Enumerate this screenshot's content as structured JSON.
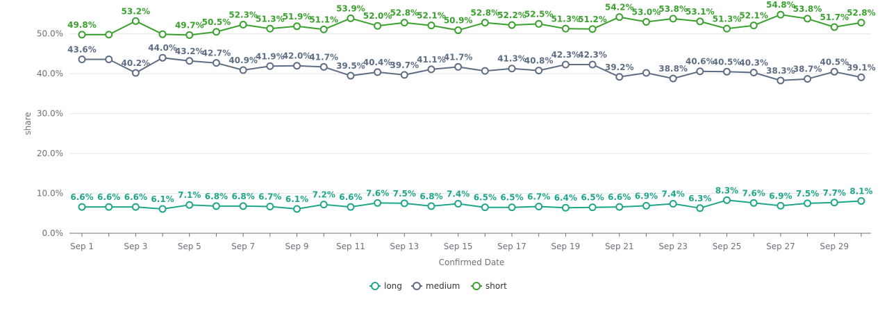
{
  "chart_data": {
    "type": "line",
    "xlabel": "Confirmed Date",
    "ylabel": "share",
    "ylim": [
      0,
      55
    ],
    "yticks": [
      "0.0%",
      "10.0%",
      "20.0%",
      "30.0%",
      "40.0%",
      "50.0%"
    ],
    "ytick_values": [
      0,
      10,
      20,
      30,
      40,
      50
    ],
    "categories": [
      "Sep 1",
      "Sep 2",
      "Sep 3",
      "Sep 4",
      "Sep 5",
      "Sep 6",
      "Sep 7",
      "Sep 8",
      "Sep 9",
      "Sep 10",
      "Sep 11",
      "Sep 12",
      "Sep 13",
      "Sep 14",
      "Sep 15",
      "Sep 16",
      "Sep 17",
      "Sep 18",
      "Sep 19",
      "Sep 20",
      "Sep 21",
      "Sep 22",
      "Sep 23",
      "Sep 24",
      "Sep 25",
      "Sep 26",
      "Sep 27",
      "Sep 28",
      "Sep 29",
      "Sep 30"
    ],
    "xtick_labels": [
      "Sep 1",
      "Sep 3",
      "Sep 5",
      "Sep 7",
      "Sep 9",
      "Sep 11",
      "Sep 13",
      "Sep 15",
      "Sep 17",
      "Sep 19",
      "Sep 21",
      "Sep 23",
      "Sep 25",
      "Sep 27",
      "Sep 29"
    ],
    "grid": true,
    "legend_position": "bottom-center",
    "series": [
      {
        "name": "long",
        "color": "#1fa68a",
        "values": [
          6.6,
          6.6,
          6.6,
          6.1,
          7.1,
          6.8,
          6.8,
          6.7,
          6.1,
          7.2,
          6.6,
          7.6,
          7.5,
          6.8,
          7.4,
          6.5,
          6.5,
          6.7,
          6.4,
          6.5,
          6.6,
          6.9,
          7.4,
          6.3,
          8.3,
          7.6,
          6.9,
          7.5,
          7.7,
          8.1
        ],
        "labels": [
          "6.6%",
          "6.6%",
          "6.6%",
          "6.1%",
          "7.1%",
          "6.8%",
          "6.8%",
          "6.7%",
          "6.1%",
          "7.2%",
          "6.6%",
          "7.6%",
          "7.5%",
          "6.8%",
          "7.4%",
          "6.5%",
          "6.5%",
          "6.7%",
          "6.4%",
          "6.5%",
          "6.6%",
          "6.9%",
          "7.4%",
          "6.3%",
          "8.3%",
          "7.6%",
          "6.9%",
          "7.5%",
          "7.7%",
          "8.1%"
        ]
      },
      {
        "name": "medium",
        "color": "#5d6d84",
        "values": [
          43.6,
          43.6,
          40.2,
          44.0,
          43.2,
          42.7,
          40.9,
          41.9,
          42.0,
          41.7,
          39.5,
          40.4,
          39.7,
          41.1,
          41.7,
          40.7,
          41.3,
          40.8,
          42.3,
          42.3,
          39.2,
          40.2,
          38.8,
          40.6,
          40.5,
          40.3,
          38.3,
          38.7,
          40.5,
          39.1
        ],
        "labels": [
          "43.6%",
          "",
          "40.2%",
          "44.0%",
          "43.2%",
          "42.7%",
          "40.9%",
          "41.9%",
          "42.0%",
          "41.7%",
          "39.5%",
          "40.4%",
          "39.7%",
          "41.1%",
          "41.7%",
          "",
          "41.3%",
          "40.8%",
          "42.3%",
          "42.3%",
          "39.2%",
          "",
          "38.8%",
          "40.6%",
          "40.5%",
          "40.3%",
          "38.3%",
          "38.7%",
          "40.5%",
          "39.1%"
        ]
      },
      {
        "name": "short",
        "color": "#3aa02e",
        "values": [
          49.8,
          49.8,
          53.2,
          49.9,
          49.7,
          50.5,
          52.3,
          51.3,
          51.9,
          51.1,
          53.9,
          52.0,
          52.8,
          52.1,
          50.9,
          52.8,
          52.2,
          52.5,
          51.3,
          51.2,
          54.2,
          53.0,
          53.8,
          53.1,
          51.3,
          52.1,
          54.8,
          53.8,
          51.7,
          52.8
        ],
        "labels": [
          "49.8%",
          "",
          "53.2%",
          "",
          "49.7%",
          "50.5%",
          "52.3%",
          "51.3%",
          "51.9%",
          "51.1%",
          "53.9%",
          "52.0%",
          "52.8%",
          "52.1%",
          "50.9%",
          "52.8%",
          "52.2%",
          "52.5%",
          "51.3%",
          "51.2%",
          "54.2%",
          "53.0%",
          "53.8%",
          "53.1%",
          "51.3%",
          "52.1%",
          "54.8%",
          "53.8%",
          "51.7%",
          "52.8%"
        ]
      }
    ]
  }
}
